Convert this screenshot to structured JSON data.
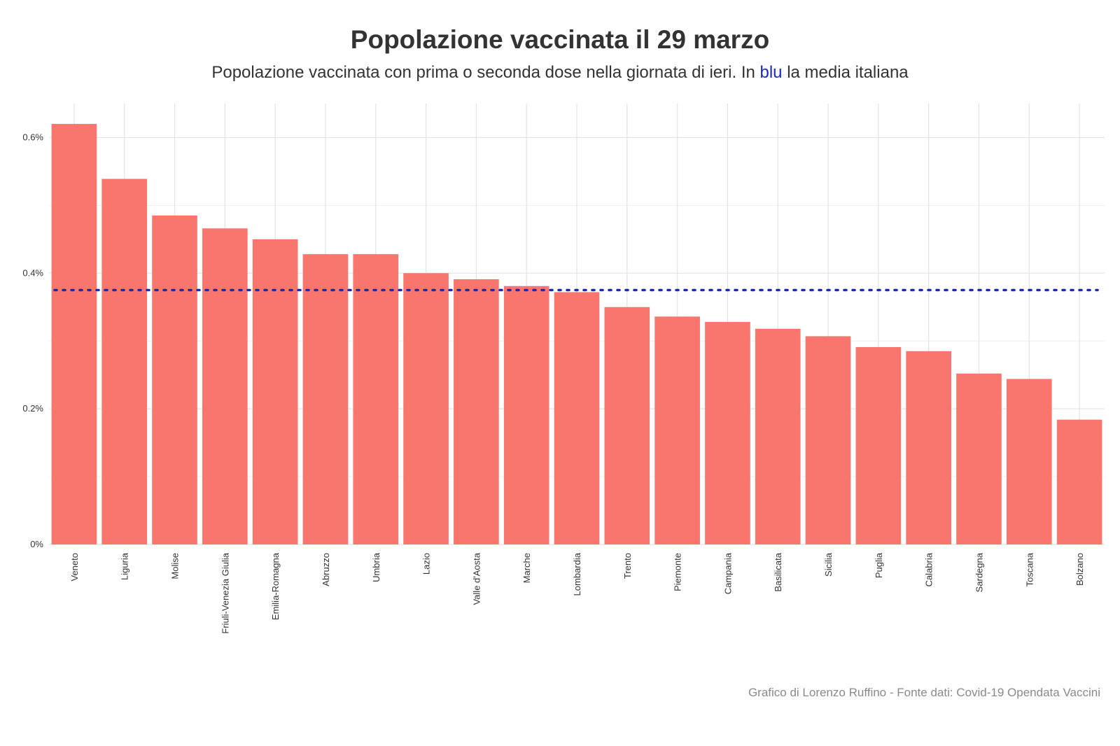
{
  "chart_data": {
    "type": "bar",
    "title": "Popolazione vaccinata il 29 marzo",
    "subtitle": {
      "before": "Popolazione vaccinata con prima o seconda dose nella giornata di ieri. In ",
      "highlight": "blu",
      "after": " la media italiana"
    },
    "caption": "Grafico di Lorenzo Ruffino - Fonte dati: Covid-19 Opendata Vaccini",
    "categories": [
      "Veneto",
      "Liguria",
      "Molise",
      "Friuli-Venezia Giulia",
      "Emilia-Romagna",
      "Abruzzo",
      "Umbria",
      "Lazio",
      "Valle d'Aosta",
      "Marche",
      "Lombardia",
      "Trento",
      "Piemonte",
      "Campania",
      "Basilicata",
      "Sicilia",
      "Puglia",
      "Calabria",
      "Sardegna",
      "Toscana",
      "Bolzano"
    ],
    "values": [
      0.62,
      0.539,
      0.485,
      0.466,
      0.45,
      0.428,
      0.428,
      0.4,
      0.391,
      0.381,
      0.372,
      0.35,
      0.336,
      0.328,
      0.318,
      0.307,
      0.291,
      0.285,
      0.252,
      0.244,
      0.184
    ],
    "reference_line": {
      "value": 0.375,
      "style": "dotted",
      "color": "#1a2ab5"
    },
    "yticks": [
      {
        "value": 0,
        "label": "0%"
      },
      {
        "value": 0.2,
        "label": "0.2%"
      },
      {
        "value": 0.4,
        "label": "0.4%"
      },
      {
        "value": 0.6,
        "label": "0.6%"
      }
    ],
    "ylim": [
      0,
      0.65
    ],
    "grid": true,
    "colors": {
      "bar": "#f8766d",
      "grid": "#e3e3e3",
      "reference": "#1a2ab5",
      "text": "#333333",
      "caption": "#8a8a8a"
    }
  }
}
